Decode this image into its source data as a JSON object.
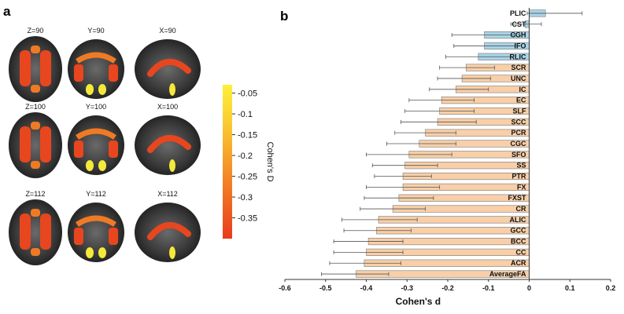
{
  "panel_a": {
    "letter": "a",
    "slices": [
      {
        "label": "Z=90",
        "view": "axial",
        "level": 0
      },
      {
        "label": "Y=90",
        "view": "coronal",
        "level": 0
      },
      {
        "label": "X=90",
        "view": "sagittal",
        "level": 0
      },
      {
        "label": "Z=100",
        "view": "axial",
        "level": 1
      },
      {
        "label": "Y=100",
        "view": "coronal",
        "level": 1
      },
      {
        "label": "X=100",
        "view": "sagittal",
        "level": 1
      },
      {
        "label": "Z=112",
        "view": "axial",
        "level": 2
      },
      {
        "label": "Y=112",
        "view": "coronal",
        "level": 2
      },
      {
        "label": "X=112",
        "view": "sagittal",
        "level": 2
      }
    ],
    "colorbar": {
      "title": "Cohen's D",
      "ticks": [
        "-0.05",
        "-0.1",
        "-0.15",
        "-0.2",
        "-0.25",
        "-0.3",
        "-0.35"
      ],
      "tick_values": [
        -0.05,
        -0.1,
        -0.15,
        -0.2,
        -0.25,
        -0.3,
        -0.35
      ],
      "range": [
        -0.4,
        -0.03
      ],
      "colors": [
        "#e83b1e",
        "#f06a22",
        "#f59b2a",
        "#facb32",
        "#fdf03a"
      ]
    }
  },
  "chart_data": {
    "type": "bar",
    "orientation": "horizontal",
    "panel_letter": "b",
    "xlabel": "Cohen's d",
    "xlim": [
      -0.6,
      0.2
    ],
    "xticks": [
      -0.6,
      -0.5,
      -0.4,
      -0.3,
      -0.2,
      -0.1,
      0,
      0.1,
      0.2
    ],
    "xtick_labels": [
      "-0.6",
      "-0.5",
      "-0.4",
      "-0.3",
      "-0.2",
      "-0.1",
      "0",
      "0.1",
      "0.2"
    ],
    "categories": [
      "PLIC",
      "CST",
      "CGH",
      "IFO",
      "RLIC",
      "SCR",
      "UNC",
      "IC",
      "EC",
      "SLF",
      "SCC",
      "PCR",
      "CGC",
      "SFO",
      "SS",
      "PTR",
      "FX",
      "FXST",
      "CR",
      "ALIC",
      "GCC",
      "BCC",
      "CC",
      "ACR",
      "AverageFA"
    ],
    "values": [
      0.04,
      -0.01,
      -0.11,
      -0.11,
      -0.125,
      -0.155,
      -0.165,
      -0.18,
      -0.215,
      -0.22,
      -0.225,
      -0.255,
      -0.27,
      -0.295,
      -0.305,
      -0.31,
      -0.31,
      -0.32,
      -0.335,
      -0.37,
      -0.375,
      -0.395,
      -0.4,
      -0.405,
      -0.425
    ],
    "error_low": [
      -0.005,
      -0.045,
      -0.19,
      -0.185,
      -0.205,
      -0.22,
      -0.225,
      -0.245,
      -0.295,
      -0.305,
      -0.315,
      -0.33,
      -0.35,
      -0.4,
      -0.385,
      -0.38,
      -0.4,
      -0.405,
      -0.415,
      -0.46,
      -0.455,
      -0.48,
      -0.48,
      -0.49,
      -0.51
    ],
    "error_high": [
      0.13,
      0.03,
      -0.035,
      -0.035,
      -0.045,
      -0.085,
      -0.095,
      -0.1,
      -0.135,
      -0.135,
      -0.13,
      -0.18,
      -0.18,
      -0.19,
      -0.225,
      -0.24,
      -0.22,
      -0.235,
      -0.255,
      -0.275,
      -0.29,
      -0.31,
      -0.31,
      -0.315,
      -0.345
    ],
    "colors": {
      "positive_group": "#a9d3e6",
      "negative_group": "#f8cfa8",
      "edge": "#777777"
    },
    "blue_categories": [
      "PLIC",
      "CST",
      "CGH",
      "IFO",
      "RLIC"
    ],
    "grid": false
  }
}
